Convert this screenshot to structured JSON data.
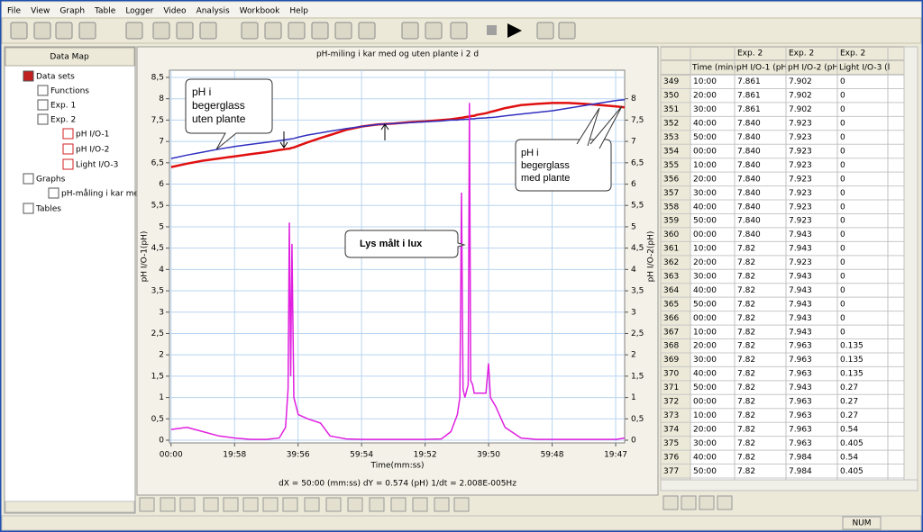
{
  "menu": [
    "File",
    "View",
    "Graph",
    "Table",
    "Logger",
    "Video",
    "Analysis",
    "Workbook",
    "Help"
  ],
  "data_map": {
    "title": "Data Map",
    "items": [
      "Data sets",
      "Functions",
      "Exp. 1",
      "Exp. 2",
      "pH I/O-1",
      "pH I/O-2",
      "Light I/O-3",
      "Graphs",
      "pH-måling i kar med",
      "Tables"
    ]
  },
  "chart_data": {
    "type": "line",
    "title": "pH-miling i kar med og uten plante i 2 d",
    "x_label": "Time(mm:ss)",
    "y_label": "pH I/O-1(pH)",
    "y2_label": "pH I/O-2(pH)",
    "y_label_color": "#e01010",
    "y2_label_color": "#2020c0",
    "cursor_readout": "dX = 50:00 (mm:ss)  dY = 0.574 (pH)  1/dt = 2.008E-005Hz",
    "grid": true,
    "xlim": [
      -0.5,
      142.6
    ],
    "xticks": [
      {
        "value": 0,
        "label": "00:00"
      },
      {
        "value": 19.97,
        "label": "19:58"
      },
      {
        "value": 39.93,
        "label": "39:56"
      },
      {
        "value": 59.9,
        "label": "59:54"
      },
      {
        "value": 79.87,
        "label": "19:52"
      },
      {
        "value": 99.83,
        "label": "39:50"
      },
      {
        "value": 119.8,
        "label": "59:48"
      },
      {
        "value": 139.78,
        "label": "19:47"
      }
    ],
    "ylim": [
      0,
      8.5
    ],
    "yticks": [
      0,
      {
        "value": 0.5,
        "label": "0,5"
      },
      1,
      {
        "value": 1.5,
        "label": "1,5"
      },
      2,
      {
        "value": 2.5,
        "label": "2,5"
      },
      3,
      {
        "value": 3.5,
        "label": "3,5"
      },
      4,
      {
        "value": 4.5,
        "label": "4,5"
      },
      5,
      {
        "value": 5.5,
        "label": "5,5"
      },
      6,
      {
        "value": 6.5,
        "label": "6,5"
      },
      7,
      {
        "value": 7.5,
        "label": "7,5"
      },
      8,
      {
        "value": 8.5,
        "label": "8,5"
      }
    ],
    "y2lim": [
      0,
      8.5
    ],
    "y2ticks": [
      0,
      {
        "value": 0.5,
        "label": "0,5"
      },
      1,
      {
        "value": 1.5,
        "label": "1,5"
      },
      2,
      {
        "value": 2.5,
        "label": "2,5"
      },
      3,
      {
        "value": 3.5,
        "label": "3,5"
      },
      4,
      {
        "value": 4.5,
        "label": "4,5"
      },
      5,
      {
        "value": 5.5,
        "label": "5,5"
      },
      6,
      {
        "value": 6.5,
        "label": "6,5"
      },
      7,
      {
        "value": 7.5,
        "label": "7,5"
      },
      8
    ],
    "x": [
      0,
      5,
      10,
      15,
      20,
      25,
      30,
      34,
      36,
      36.8,
      37.2,
      37.6,
      38,
      38.6,
      40,
      43,
      47,
      50,
      55,
      60,
      65,
      70,
      75,
      80,
      85,
      88,
      90,
      90.8,
      91.3,
      91.8,
      92.4,
      93.4,
      93.8,
      94.2,
      94.8,
      95.3,
      96,
      99,
      99.8,
      100.4,
      102,
      105,
      110,
      115,
      120,
      125,
      130,
      135,
      140,
      142.6
    ],
    "series": [
      {
        "color": "#e01010",
        "values": [
          6.4,
          6.48,
          6.55,
          6.6,
          6.65,
          6.7,
          6.75,
          6.8,
          6.82,
          6.83,
          6.83,
          6.84,
          6.85,
          6.86,
          6.9,
          6.98,
          7.08,
          7.15,
          7.27,
          7.35,
          7.4,
          7.42,
          7.45,
          7.47,
          7.5,
          7.52,
          7.54,
          7.55,
          7.55,
          7.56,
          7.57,
          7.58,
          7.58,
          7.59,
          7.6,
          7.6,
          7.62,
          7.66,
          7.68,
          7.69,
          7.72,
          7.78,
          7.85,
          7.88,
          7.9,
          7.9,
          7.88,
          7.85,
          7.82,
          7.8
        ]
      },
      {
        "color": "#3030c0",
        "axis": "y2",
        "values": [
          6.6,
          6.68,
          6.75,
          6.82,
          6.88,
          6.93,
          6.98,
          7.02,
          7.04,
          7.05,
          7.05,
          7.06,
          7.06,
          7.07,
          7.1,
          7.15,
          7.2,
          7.24,
          7.3,
          7.35,
          7.4,
          7.42,
          7.44,
          7.46,
          7.48,
          7.5,
          7.5,
          7.51,
          7.51,
          7.51,
          7.52,
          7.52,
          7.52,
          7.53,
          7.53,
          7.53,
          7.54,
          7.55,
          7.56,
          7.56,
          7.57,
          7.6,
          7.64,
          7.68,
          7.72,
          7.78,
          7.84,
          7.9,
          7.96,
          7.98
        ]
      },
      {
        "color": "#e020e0",
        "values": [
          0.25,
          0.3,
          0.2,
          0.1,
          0.05,
          0.02,
          0.02,
          0.05,
          0.3,
          1.2,
          5.1,
          1.5,
          4.6,
          1.0,
          0.6,
          0.5,
          0.4,
          0.1,
          0.03,
          0.02,
          0.02,
          0.02,
          0.02,
          0.02,
          0.03,
          0.2,
          0.6,
          1.0,
          5.8,
          1.2,
          1.0,
          1.3,
          7.9,
          1.4,
          1.3,
          1.1,
          1.1,
          1.1,
          1.8,
          1.0,
          0.8,
          0.3,
          0.05,
          0.02,
          0.02,
          0.02,
          0.02,
          0.02,
          0.02,
          0.05
        ]
      }
    ],
    "annotations": [
      {
        "lines": [
          "pH i",
          "begerglass",
          "uten plante"
        ],
        "color": "#1a3fb0"
      },
      {
        "lines": [
          "pH i",
          "begerglass",
          "med plante"
        ],
        "color": "#e01010"
      },
      {
        "lines": [
          "Lys målt i lux"
        ],
        "color": "#d01030"
      }
    ]
  },
  "table": {
    "group": [
      "Exp. 2",
      "Exp. 2",
      "Exp. 2"
    ],
    "columns": [
      "Time (min)",
      "pH I/O-1 (pH",
      "pH I/O-2 (pH",
      "Light I/O-3 (l"
    ],
    "rows": [
      [
        "349",
        "10:00",
        "7.861",
        "7.902",
        "0"
      ],
      [
        "350",
        "20:00",
        "7.861",
        "7.902",
        "0"
      ],
      [
        "351",
        "30:00",
        "7.861",
        "7.902",
        "0"
      ],
      [
        "352",
        "40:00",
        "7.840",
        "7.923",
        "0"
      ],
      [
        "353",
        "50:00",
        "7.840",
        "7.923",
        "0"
      ],
      [
        "354",
        "00:00",
        "7.840",
        "7.923",
        "0"
      ],
      [
        "355",
        "10:00",
        "7.840",
        "7.923",
        "0"
      ],
      [
        "356",
        "20:00",
        "7.840",
        "7.923",
        "0"
      ],
      [
        "357",
        "30:00",
        "7.840",
        "7.923",
        "0"
      ],
      [
        "358",
        "40:00",
        "7.840",
        "7.923",
        "0"
      ],
      [
        "359",
        "50:00",
        "7.840",
        "7.923",
        "0"
      ],
      [
        "360",
        "00:00",
        "7.840",
        "7.943",
        "0"
      ],
      [
        "361",
        "10:00",
        "7.82",
        "7.943",
        "0"
      ],
      [
        "362",
        "20:00",
        "7.82",
        "7.923",
        "0"
      ],
      [
        "363",
        "30:00",
        "7.82",
        "7.943",
        "0"
      ],
      [
        "364",
        "40:00",
        "7.82",
        "7.943",
        "0"
      ],
      [
        "365",
        "50:00",
        "7.82",
        "7.943",
        "0"
      ],
      [
        "366",
        "00:00",
        "7.82",
        "7.943",
        "0"
      ],
      [
        "367",
        "10:00",
        "7.82",
        "7.943",
        "0"
      ],
      [
        "368",
        "20:00",
        "7.82",
        "7.963",
        "0.135"
      ],
      [
        "369",
        "30:00",
        "7.82",
        "7.963",
        "0.135"
      ],
      [
        "370",
        "40:00",
        "7.82",
        "7.963",
        "0.135"
      ],
      [
        "371",
        "50:00",
        "7.82",
        "7.943",
        "0.27"
      ],
      [
        "372",
        "00:00",
        "7.82",
        "7.963",
        "0.27"
      ],
      [
        "373",
        "10:00",
        "7.82",
        "7.963",
        "0.27"
      ],
      [
        "374",
        "20:00",
        "7.82",
        "7.963",
        "0.54"
      ],
      [
        "375",
        "30:00",
        "7.82",
        "7.963",
        "0.405"
      ],
      [
        "376",
        "40:00",
        "7.82",
        "7.984",
        "0.54"
      ],
      [
        "377",
        "50:00",
        "7.82",
        "7.984",
        "0.405"
      ]
    ]
  },
  "status": "NUM"
}
